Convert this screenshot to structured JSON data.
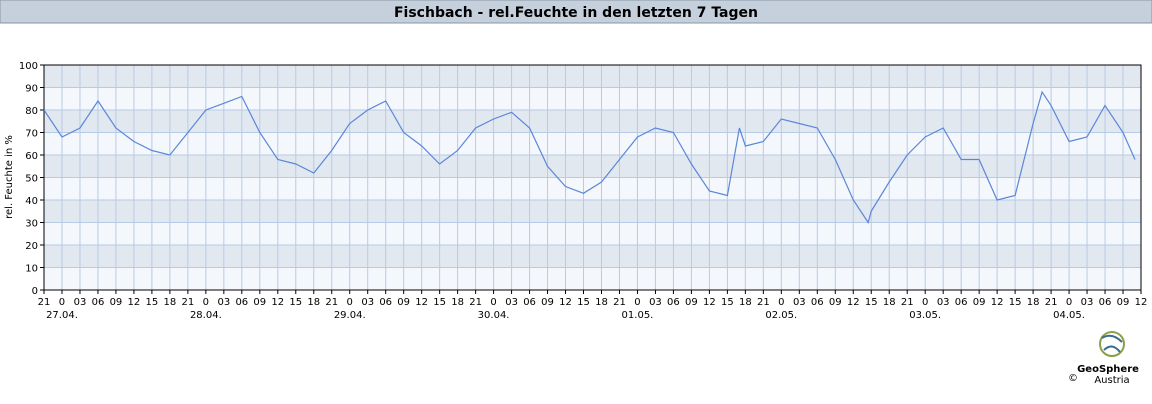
{
  "chart_data": {
    "type": "line",
    "title": "Fischbach - rel.Feuchte in den letzten 7 Tagen",
    "y_label": "rel. Feuchte in %",
    "logo": {
      "name": "GeoSphere",
      "sub": "Austria",
      "copyright": "©"
    },
    "xlim": [
      0,
      183
    ],
    "ylim": [
      0,
      100
    ],
    "yticks": [
      0,
      10,
      20,
      30,
      40,
      50,
      60,
      70,
      80,
      90,
      100
    ],
    "xticks": [
      {
        "value": 0,
        "label": "21"
      },
      {
        "value": 3,
        "label": "0"
      },
      {
        "value": 6,
        "label": "03"
      },
      {
        "value": 9,
        "label": "06"
      },
      {
        "value": 12,
        "label": "09"
      },
      {
        "value": 15,
        "label": "12"
      },
      {
        "value": 18,
        "label": "15"
      },
      {
        "value": 21,
        "label": "18"
      },
      {
        "value": 24,
        "label": "21"
      },
      {
        "value": 27,
        "label": "0"
      },
      {
        "value": 30,
        "label": "03"
      },
      {
        "value": 33,
        "label": "06"
      },
      {
        "value": 36,
        "label": "09"
      },
      {
        "value": 39,
        "label": "12"
      },
      {
        "value": 42,
        "label": "15"
      },
      {
        "value": 45,
        "label": "18"
      },
      {
        "value": 48,
        "label": "21"
      },
      {
        "value": 51,
        "label": "0"
      },
      {
        "value": 54,
        "label": "03"
      },
      {
        "value": 57,
        "label": "06"
      },
      {
        "value": 60,
        "label": "09"
      },
      {
        "value": 63,
        "label": "12"
      },
      {
        "value": 66,
        "label": "15"
      },
      {
        "value": 69,
        "label": "18"
      },
      {
        "value": 72,
        "label": "21"
      },
      {
        "value": 75,
        "label": "0"
      },
      {
        "value": 78,
        "label": "03"
      },
      {
        "value": 81,
        "label": "06"
      },
      {
        "value": 84,
        "label": "09"
      },
      {
        "value": 87,
        "label": "12"
      },
      {
        "value": 90,
        "label": "15"
      },
      {
        "value": 93,
        "label": "18"
      },
      {
        "value": 96,
        "label": "21"
      },
      {
        "value": 99,
        "label": "0"
      },
      {
        "value": 102,
        "label": "03"
      },
      {
        "value": 105,
        "label": "06"
      },
      {
        "value": 108,
        "label": "09"
      },
      {
        "value": 111,
        "label": "12"
      },
      {
        "value": 114,
        "label": "15"
      },
      {
        "value": 117,
        "label": "18"
      },
      {
        "value": 120,
        "label": "21"
      },
      {
        "value": 123,
        "label": "0"
      },
      {
        "value": 126,
        "label": "03"
      },
      {
        "value": 129,
        "label": "06"
      },
      {
        "value": 132,
        "label": "09"
      },
      {
        "value": 135,
        "label": "12"
      },
      {
        "value": 138,
        "label": "15"
      },
      {
        "value": 141,
        "label": "18"
      },
      {
        "value": 144,
        "label": "21"
      },
      {
        "value": 147,
        "label": "0"
      },
      {
        "value": 150,
        "label": "03"
      },
      {
        "value": 153,
        "label": "06"
      },
      {
        "value": 156,
        "label": "09"
      },
      {
        "value": 159,
        "label": "12"
      },
      {
        "value": 162,
        "label": "15"
      },
      {
        "value": 165,
        "label": "18"
      },
      {
        "value": 168,
        "label": "21"
      },
      {
        "value": 171,
        "label": "0"
      },
      {
        "value": 174,
        "label": "03"
      },
      {
        "value": 177,
        "label": "06"
      },
      {
        "value": 180,
        "label": "09"
      },
      {
        "value": 183,
        "label": "12"
      }
    ],
    "xdates": [
      {
        "value": 3,
        "label": "27.04."
      },
      {
        "value": 27,
        "label": "28.04."
      },
      {
        "value": 51,
        "label": "29.04."
      },
      {
        "value": 75,
        "label": "30.04."
      },
      {
        "value": 99,
        "label": "01.05."
      },
      {
        "value": 123,
        "label": "02.05."
      },
      {
        "value": 147,
        "label": "03.05."
      },
      {
        "value": 171,
        "label": "04.05."
      }
    ],
    "grid": true,
    "series": [
      {
        "color": "#5b87d9",
        "x": [
          0,
          3,
          6,
          9,
          12,
          15,
          18,
          21,
          24,
          27,
          30,
          33,
          36,
          39,
          42,
          45,
          48,
          51,
          54,
          57,
          60,
          63,
          66,
          69,
          72,
          75,
          78,
          81,
          84,
          87,
          90,
          93,
          96,
          99,
          102,
          105,
          108,
          111,
          114,
          116,
          117,
          120,
          123,
          126,
          129,
          132,
          135,
          137.5,
          138,
          141,
          144,
          147,
          150,
          153,
          156,
          159,
          162,
          165,
          166.5,
          168,
          171,
          174,
          177,
          180,
          182
        ],
        "values": [
          80,
          68,
          72,
          84,
          72,
          66,
          62,
          60,
          70,
          80,
          83,
          86,
          70,
          58,
          56,
          52,
          62,
          74,
          80,
          84,
          70,
          64,
          56,
          62,
          72,
          76,
          79,
          72,
          55,
          46,
          43,
          48,
          58,
          68,
          72,
          70,
          56,
          44,
          42,
          72,
          64,
          66,
          76,
          74,
          72,
          58,
          40,
          30,
          35,
          48,
          60,
          68,
          72,
          58,
          58,
          40,
          42,
          74,
          88,
          82,
          66,
          68,
          82,
          70,
          58
        ]
      }
    ]
  }
}
